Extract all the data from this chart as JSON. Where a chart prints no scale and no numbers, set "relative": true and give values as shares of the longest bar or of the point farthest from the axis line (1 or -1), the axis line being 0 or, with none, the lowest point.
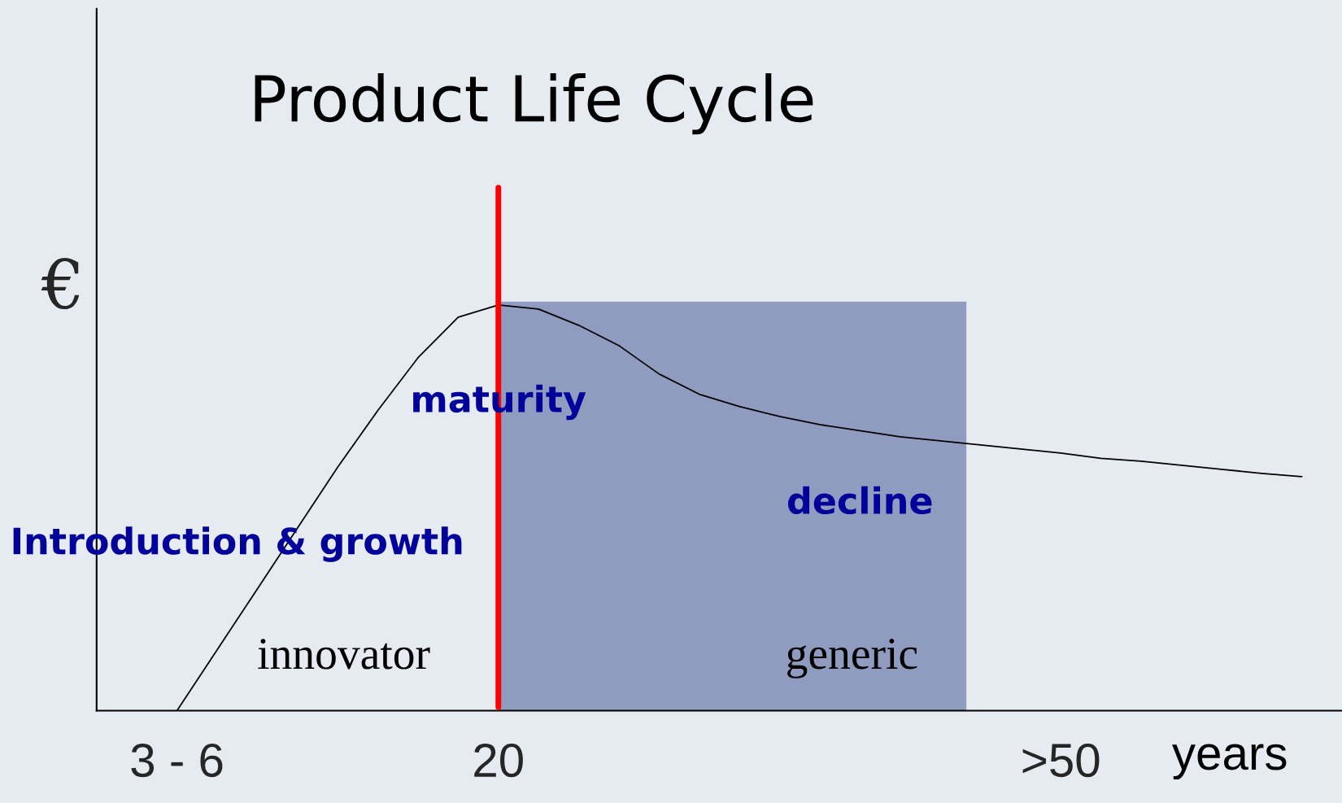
{
  "chart_data": {
    "type": "line",
    "title": "Product Life Cycle",
    "ylabel": "€",
    "xlabel": "years",
    "relative": true,
    "categories": [
      null,
      null,
      "3 - 6",
      null,
      null,
      null,
      null,
      null,
      null,
      null,
      "20",
      null,
      null,
      null,
      null,
      null,
      null,
      null,
      null,
      null,
      null,
      null,
      null,
      null,
      ">50",
      null,
      null,
      null,
      null,
      null,
      null
    ],
    "series": [
      {
        "color": "#000000",
        "values": [
          null,
          null,
          0,
          0.15,
          0.3,
          0.45,
          0.6,
          0.74,
          0.87,
          0.97,
          1.0,
          0.99,
          0.95,
          0.9,
          0.83,
          0.78,
          0.75,
          0.725,
          0.705,
          0.69,
          0.675,
          0.665,
          0.655,
          0.645,
          0.635,
          0.622,
          0.615,
          0.605,
          0.595,
          0.585,
          0.577
        ]
      }
    ],
    "ref_lines": [
      {
        "axis": "x",
        "value": "20",
        "color": "#ff0000"
      }
    ],
    "annotations": [
      "maturity",
      "decline",
      "Introduction & growth",
      "innovator",
      "generic"
    ],
    "grid": false,
    "legend": false,
    "marker": "none",
    "line_style": "solid"
  }
}
